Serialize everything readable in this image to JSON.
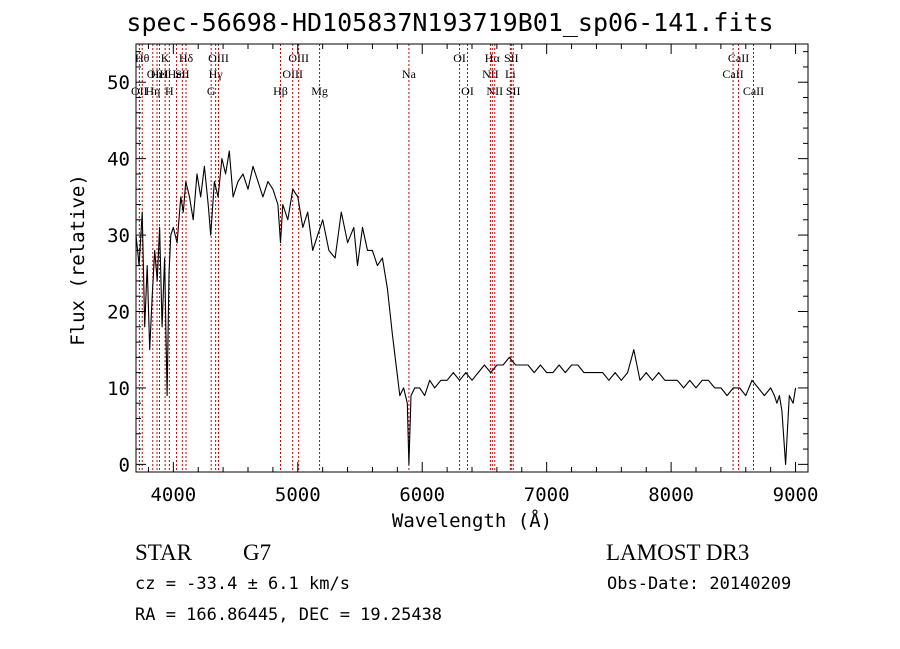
{
  "header": {
    "title": "spec-56698-HD105837N193719B01_sp06-141.fits"
  },
  "footer": {
    "class": "STAR",
    "subclass": "G7",
    "survey": "LAMOST DR3",
    "cz": "cz = -33.4 ± 6.1 km/s",
    "obs_date": "Obs-Date: 20140209",
    "radec": "RA = 166.86445, DEC =  19.25438"
  },
  "chart_data": {
    "type": "line",
    "title": "spec-56698-HD105837N193719B01_sp06-141.fits",
    "xlabel": "Wavelength (Å)",
    "ylabel": "Flux (relative)",
    "xlim": [
      3700,
      9100
    ],
    "ylim": [
      -1,
      55
    ],
    "x_ticks": [
      4000,
      5000,
      6000,
      7000,
      8000,
      9000
    ],
    "y_ticks": [
      0,
      10,
      20,
      30,
      40,
      50
    ],
    "line_color": "#000000",
    "marker_color": "#cc0000",
    "series": [
      {
        "x": [
          3700,
          3725,
          3750,
          3770,
          3790,
          3810,
          3830,
          3850,
          3870,
          3890,
          3910,
          3930,
          3950,
          3965,
          3980,
          4000,
          4030,
          4060,
          4080,
          4100,
          4130,
          4160,
          4190,
          4220,
          4250,
          4280,
          4300,
          4330,
          4360,
          4390,
          4420,
          4450,
          4480,
          4520,
          4560,
          4600,
          4640,
          4680,
          4720,
          4760,
          4800,
          4840,
          4861,
          4880,
          4920,
          4960,
          5000,
          5040,
          5080,
          5120,
          5160,
          5200,
          5250,
          5300,
          5350,
          5400,
          5450,
          5480,
          5520,
          5560,
          5600,
          5640,
          5680,
          5720,
          5740,
          5760,
          5790,
          5820,
          5850,
          5880,
          5893,
          5910,
          5940,
          5980,
          6020,
          6060,
          6100,
          6150,
          6200,
          6250,
          6300,
          6350,
          6400,
          6450,
          6500,
          6550,
          6600,
          6650,
          6700,
          6750,
          6800,
          6850,
          6900,
          6950,
          7000,
          7050,
          7100,
          7150,
          7200,
          7250,
          7300,
          7350,
          7400,
          7450,
          7500,
          7550,
          7600,
          7650,
          7700,
          7750,
          7800,
          7850,
          7900,
          7950,
          8000,
          8050,
          8100,
          8150,
          8200,
          8250,
          8300,
          8350,
          8400,
          8450,
          8500,
          8550,
          8600,
          8650,
          8700,
          8750,
          8800,
          8830,
          8850,
          8870,
          8890,
          8920,
          8950,
          8980,
          9000
        ],
        "y": [
          30,
          26,
          33,
          18,
          26,
          15,
          22,
          28,
          24,
          31,
          18,
          27,
          9,
          25,
          30,
          31,
          29,
          35,
          33,
          37,
          35,
          32,
          38,
          35,
          39,
          34,
          30,
          37,
          35,
          40,
          38,
          41,
          35,
          37,
          38,
          36,
          39,
          37,
          35,
          37,
          36,
          34,
          29,
          34,
          32,
          36,
          35,
          31,
          33,
          28,
          30,
          32,
          28,
          27,
          33,
          29,
          31,
          26,
          31,
          28,
          28,
          26,
          27,
          23,
          20,
          17,
          13,
          9,
          10,
          8,
          0,
          9,
          10,
          10,
          9,
          11,
          10,
          11,
          11,
          12,
          11,
          12,
          11,
          12,
          13,
          12,
          13,
          13,
          14,
          13,
          13,
          13,
          12,
          13,
          12,
          12,
          13,
          12,
          13,
          13,
          12,
          12,
          12,
          12,
          11,
          12,
          11,
          12,
          15,
          11,
          12,
          11,
          12,
          11,
          11,
          11,
          10,
          11,
          10,
          11,
          11,
          10,
          10,
          9,
          10,
          10,
          9,
          11,
          10,
          9,
          10,
          9,
          8,
          9,
          7,
          0,
          9,
          8,
          10
        ]
      }
    ],
    "lines": [
      {
        "x": 3727,
        "label": "OII",
        "row": 2
      },
      {
        "x": 3750,
        "label": "Hθ",
        "row": 0
      },
      {
        "x": 3835,
        "label": "Hη",
        "row": 2
      },
      {
        "x": 3869,
        "label": "OIII",
        "row": 1
      },
      {
        "x": 3889,
        "label": "HeI",
        "row": 1
      },
      {
        "x": 3934,
        "label": "K",
        "row": 0
      },
      {
        "x": 3968,
        "label": "H",
        "row": 2
      },
      {
        "x": 4026,
        "label": "HeI",
        "row": 1
      },
      {
        "x": 4072,
        "label": "SII",
        "row": 1
      },
      {
        "x": 4102,
        "label": "Hδ",
        "row": 0
      },
      {
        "x": 4304,
        "label": "G",
        "row": 2
      },
      {
        "x": 4340,
        "label": "Hγ",
        "row": 1
      },
      {
        "x": 4363,
        "label": "OIII",
        "row": 0
      },
      {
        "x": 4861,
        "label": "Hβ",
        "row": 2
      },
      {
        "x": 4959,
        "label": "OIII",
        "row": 1
      },
      {
        "x": 5007,
        "label": "OIII",
        "row": 0
      },
      {
        "x": 5175,
        "label": "Mg",
        "row": 2
      },
      {
        "x": 5893,
        "label": "Na",
        "row": 1
      },
      {
        "x": 6300,
        "label": "OI",
        "row": 0
      },
      {
        "x": 6364,
        "label": "OI",
        "row": 2
      },
      {
        "x": 6548,
        "label": "NII",
        "row": 1
      },
      {
        "x": 6563,
        "label": "Hα",
        "row": 0
      },
      {
        "x": 6583,
        "label": "NII",
        "row": 2
      },
      {
        "x": 6708,
        "label": "Li",
        "row": 1
      },
      {
        "x": 6716,
        "label": "SII",
        "row": 0
      },
      {
        "x": 6731,
        "label": "SII",
        "row": 2
      },
      {
        "x": 8498,
        "label": "CaII",
        "row": 1
      },
      {
        "x": 8542,
        "label": "CaII",
        "row": 0
      },
      {
        "x": 8662,
        "label": "CaII",
        "row": 2
      }
    ]
  }
}
